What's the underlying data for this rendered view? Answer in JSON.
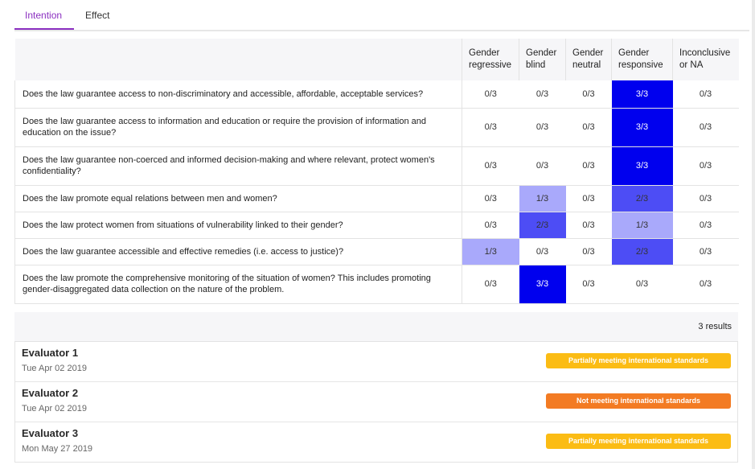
{
  "tabs": [
    {
      "label": "Intention",
      "active": true
    },
    {
      "label": "Effect",
      "active": false
    }
  ],
  "matrix": {
    "columns": [
      {
        "line1": "Gender",
        "line2": "regressive"
      },
      {
        "line1": "Gender",
        "line2": "blind"
      },
      {
        "line1": "Gender",
        "line2": "neutral"
      },
      {
        "line1": "Gender",
        "line2": "responsive"
      },
      {
        "line1": "Inconclusive",
        "line2": "or NA"
      }
    ],
    "rows": [
      {
        "question": "Does the law guarantee access to non-discriminatory and accessible, affordable, acceptable services?",
        "cells": [
          "0/3",
          "0/3",
          "0/3",
          "3/3",
          "0/3"
        ]
      },
      {
        "question": "Does the law guarantee access to information and education or require the provision of information and education on the issue?",
        "cells": [
          "0/3",
          "0/3",
          "0/3",
          "3/3",
          "0/3"
        ]
      },
      {
        "question": "Does the law guarantee non-coerced and informed decision-making and where relevant, protect women's confidentiality?",
        "cells": [
          "0/3",
          "0/3",
          "0/3",
          "3/3",
          "0/3"
        ]
      },
      {
        "question": "Does the law promote equal relations between men and women?",
        "cells": [
          "0/3",
          "1/3",
          "0/3",
          "2/3",
          "0/3"
        ]
      },
      {
        "question": "Does the law protect women from situations of vulnerability linked to their gender?",
        "cells": [
          "0/3",
          "2/3",
          "0/3",
          "1/3",
          "0/3"
        ]
      },
      {
        "question": "Does the law guarantee accessible and effective remedies (i.e. access to justice)?",
        "cells": [
          "1/3",
          "0/3",
          "0/3",
          "2/3",
          "0/3"
        ]
      },
      {
        "question": "Does the law promote the comprehensive monitoring of the situation of women? This includes promoting gender-disaggregated data collection on the nature of the problem.",
        "cells": [
          "0/3",
          "3/3",
          "0/3",
          "0/3",
          "0/3"
        ]
      }
    ],
    "heat_colors": {
      "1": "#a9a9fb",
      "2": "#4d4df5",
      "3": "#0000ee"
    }
  },
  "results": {
    "count_label": "3 results",
    "evaluators": [
      {
        "name": "Evaluator 1",
        "date": "Tue Apr 02 2019",
        "status": "Partially meeting international standards",
        "status_color": "#fbbc14"
      },
      {
        "name": "Evaluator 2",
        "date": "Tue Apr 02 2019",
        "status": "Not meeting international standards",
        "status_color": "#f37b23"
      },
      {
        "name": "Evaluator 3",
        "date": "Mon May 27 2019",
        "status": "Partially meeting international standards",
        "status_color": "#fbbc14"
      }
    ]
  },
  "colors": {
    "accent": "#8a2fc0"
  }
}
